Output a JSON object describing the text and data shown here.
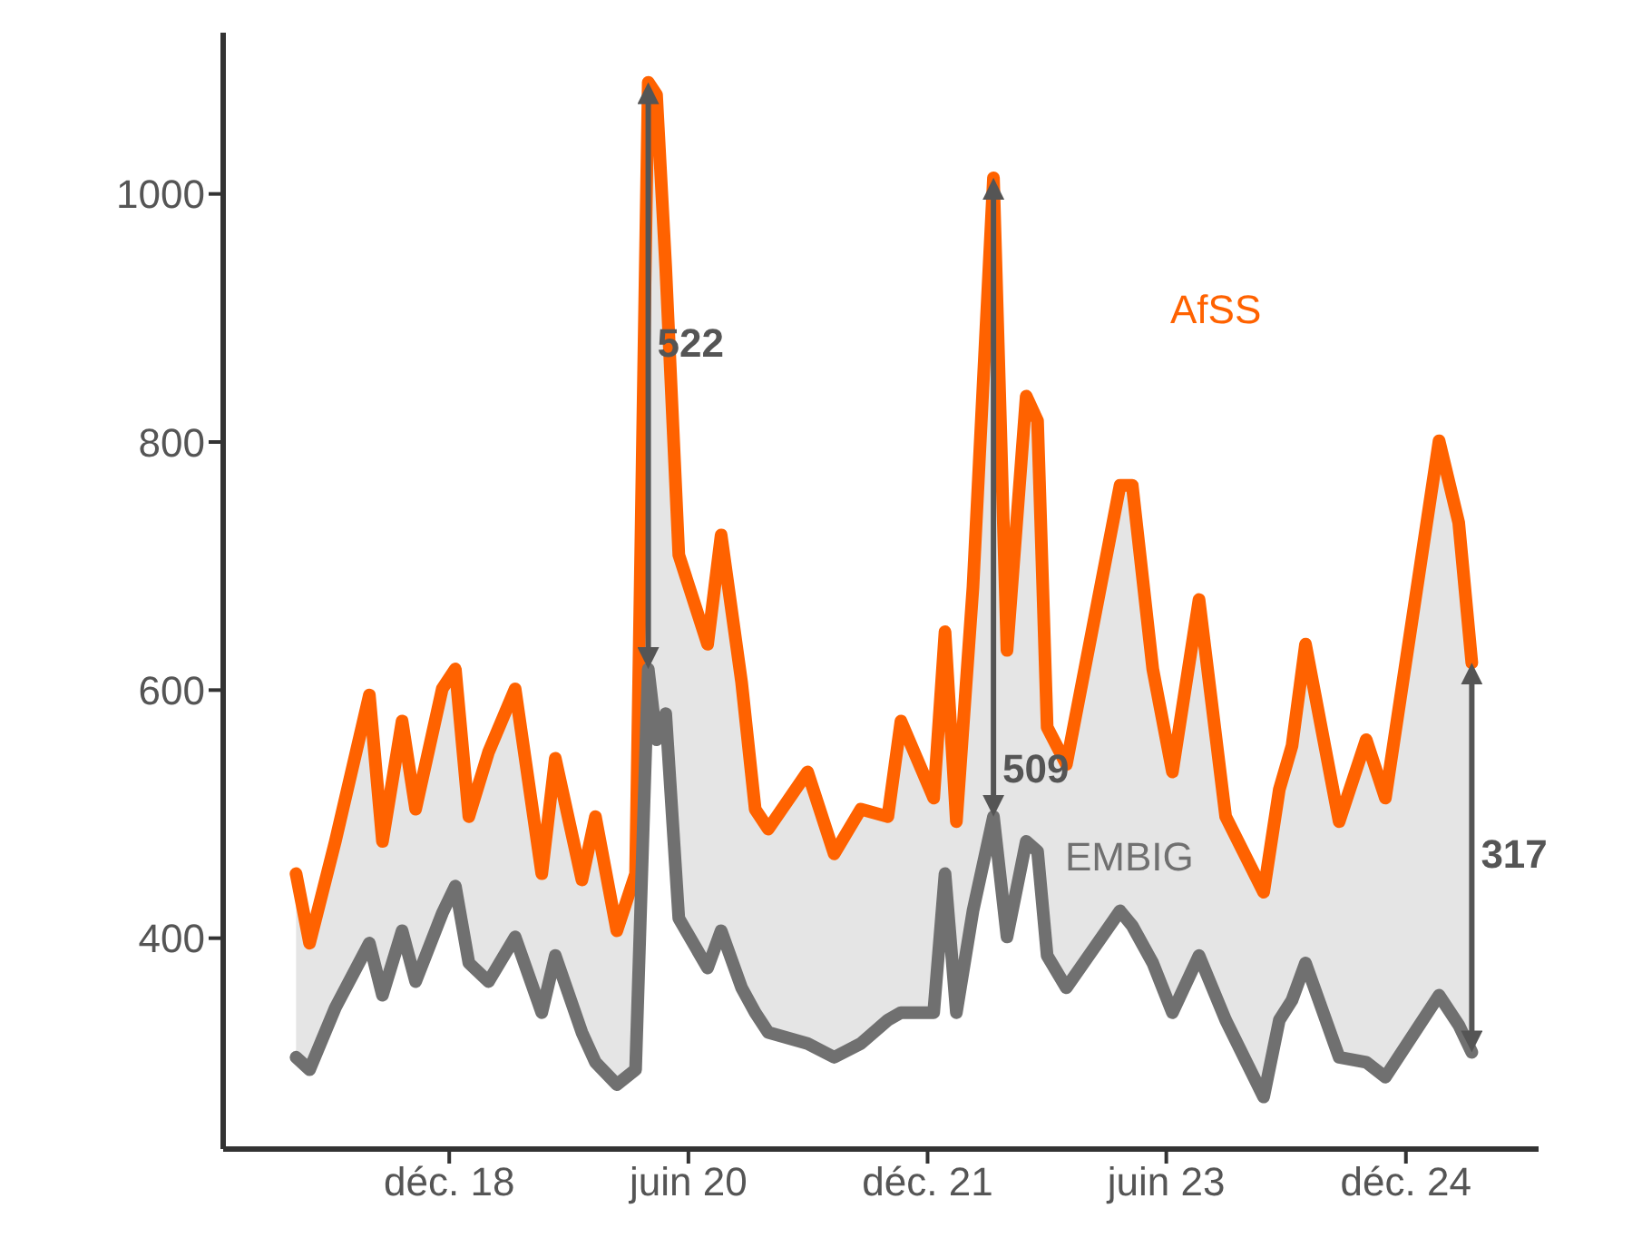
{
  "chart_data": {
    "type": "line",
    "x": [
      "2017-12-15",
      "2018-01-15",
      "2018-03-15",
      "2018-06-01",
      "2018-07-01",
      "2018-08-15",
      "2018-09-15",
      "2018-11-15",
      "2018-12-15",
      "2019-01-15",
      "2019-03-01",
      "2019-05-01",
      "2019-07-01",
      "2019-08-01",
      "2019-10-01",
      "2019-11-01",
      "2019-12-20",
      "2020-02-01",
      "2020-03-01",
      "2020-03-20",
      "2020-04-10",
      "2020-05-10",
      "2020-07-15",
      "2020-08-15",
      "2020-10-01",
      "2020-11-01",
      "2020-12-01",
      "2021-03-01",
      "2021-05-01",
      "2021-07-01",
      "2021-09-01",
      "2021-10-01",
      "2021-12-15",
      "2022-01-10",
      "2022-02-05",
      "2022-03-15",
      "2022-05-01",
      "2022-06-01",
      "2022-07-15",
      "2022-08-10",
      "2022-09-01",
      "2022-10-15",
      "2023-02-15",
      "2023-03-15",
      "2023-05-01",
      "2023-06-15",
      "2023-08-15",
      "2023-10-15",
      "2024-01-10",
      "2024-02-15",
      "2024-03-15",
      "2024-04-15",
      "2024-07-01",
      "2024-09-01",
      "2024-10-15",
      "2025-02-15",
      "2025-04-01",
      "2025-05-01"
    ],
    "series": [
      {
        "name": "AfSS",
        "color": "#ff6200",
        "values": [
          452,
          396,
          478,
          596,
          478,
          575,
          504,
          601,
          617,
          498,
          550,
          601,
          452,
          545,
          447,
          498,
          406,
          452,
          1090,
          1080,
          941,
          709,
          637,
          725,
          606,
          504,
          488,
          534,
          468,
          504,
          498,
          575,
          513,
          647,
          494,
          683,
          1013,
          632,
          837,
          817,
          570,
          540,
          765,
          765,
          617,
          534,
          673,
          498,
          437,
          520,
          555,
          637,
          494,
          560,
          513,
          801,
          735,
          622
        ]
      },
      {
        "name": "EMBIG",
        "color": "#707070",
        "values": [
          304,
          294,
          344,
          396,
          354,
          406,
          365,
          420,
          442,
          380,
          365,
          401,
          340,
          386,
          324,
          300,
          282,
          294,
          617,
          560,
          581,
          416,
          376,
          406,
          360,
          340,
          324,
          315,
          304,
          315,
          334,
          340,
          340,
          452,
          340,
          422,
          498,
          401,
          478,
          470,
          386,
          360,
          422,
          410,
          380,
          340,
          386,
          334,
          272,
          334,
          350,
          380,
          304,
          300,
          288,
          354,
          330,
          308
        ],
        "lower": [
          304,
          294,
          344,
          396,
          354,
          406,
          365,
          420,
          442,
          380,
          365,
          401,
          340,
          386,
          324,
          300,
          282,
          294,
          617,
          560,
          581,
          416,
          376,
          406,
          360,
          340,
          324,
          315,
          304,
          315,
          334,
          340,
          340,
          452,
          340,
          422,
          498,
          401,
          478,
          470,
          386,
          360,
          422,
          410,
          380,
          340,
          386,
          334,
          272,
          334,
          350,
          380,
          304,
          300,
          288,
          354,
          330,
          308
        ],
        "upper": [
          452,
          396,
          478,
          596,
          478,
          575,
          504,
          601,
          617,
          498,
          550,
          601,
          452,
          545,
          447,
          498,
          406,
          452,
          1090,
          1080,
          941,
          709,
          637,
          725,
          606,
          504,
          488,
          534,
          468,
          504,
          498,
          575,
          513,
          647,
          494,
          683,
          1013,
          632,
          837,
          817,
          570,
          540,
          765,
          765,
          617,
          534,
          673,
          498,
          437,
          520,
          555,
          637,
          494,
          560,
          513,
          801,
          735,
          622
        ]
      }
    ],
    "xlim": [
      "2017-07-01",
      "2025-10-01"
    ],
    "xticks": [
      {
        "value": "2018-12-01",
        "label": "déc. 18"
      },
      {
        "value": "2020-06-01",
        "label": "juin 20"
      },
      {
        "value": "2021-12-01",
        "label": "déc. 21"
      },
      {
        "value": "2023-06-01",
        "label": "juin 23"
      },
      {
        "value": "2024-12-01",
        "label": "déc. 24"
      }
    ],
    "ylim": [
      230,
      1130
    ],
    "yticks": [
      400,
      600,
      800,
      1000
    ],
    "annotations": [
      {
        "text": "522",
        "x": "2020-03-01"
      },
      "509",
      {
        "text": "317",
        "x": "2025-05-01"
      }
    ],
    "grid": false,
    "legend": false,
    "marker": "none",
    "line_style": "solid"
  }
}
